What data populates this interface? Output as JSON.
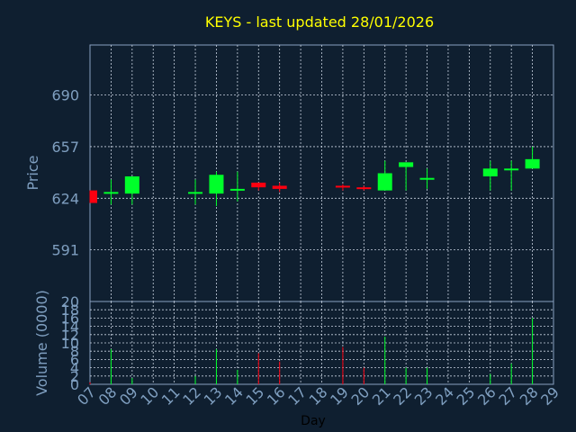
{
  "colors": {
    "background": "#0f1f30",
    "title": "#ffff00",
    "axis_text": "#7f9fc0",
    "up": "#00ff2a",
    "down": "#ff0010",
    "grid": "#c8d2e0"
  },
  "chart_data": [
    {
      "type": "candlestick",
      "title": "KEYS - last updated 28/01/2026",
      "ylabel": "Price",
      "ylim": [
        558,
        722
      ],
      "yticks": [
        591,
        624,
        657,
        690
      ],
      "grid": true,
      "x": [
        "07",
        "08",
        "09",
        "12",
        "13",
        "14",
        "15",
        "16",
        "19",
        "20",
        "21",
        "22",
        "23",
        "26",
        "27",
        "28"
      ],
      "open": [
        629,
        627,
        627,
        627,
        627,
        629,
        634,
        632,
        632,
        631,
        629,
        644,
        637,
        638,
        642,
        643
      ],
      "close": [
        621,
        628,
        638,
        628,
        639,
        630,
        631,
        630,
        631,
        630,
        640,
        647,
        637,
        643,
        643,
        649
      ],
      "high": [
        629,
        636,
        638,
        636,
        641,
        641,
        634,
        634,
        633,
        632,
        648,
        647,
        643,
        648,
        648,
        657
      ],
      "low": [
        621,
        620,
        620,
        620,
        619,
        622,
        629,
        628,
        629,
        629,
        629,
        629,
        630,
        629,
        629,
        643
      ]
    },
    {
      "type": "bar",
      "ylabel": "Volume (0000)",
      "xlabel": "Day",
      "ylim": [
        0,
        20
      ],
      "yticks": [
        0,
        2,
        4,
        6,
        8,
        10,
        12,
        14,
        16,
        18,
        20
      ],
      "x_ticks": [
        "07",
        "08",
        "09",
        "10",
        "11",
        "12",
        "13",
        "14",
        "15",
        "16",
        "17",
        "18",
        "19",
        "20",
        "21",
        "22",
        "23",
        "24",
        "25",
        "26",
        "27",
        "28",
        "29"
      ],
      "x": [
        "07",
        "08",
        "09",
        "12",
        "13",
        "14",
        "15",
        "16",
        "19",
        "20",
        "21",
        "22",
        "23",
        "26",
        "27",
        "28"
      ],
      "values": [
        0.5,
        8.5,
        1.5,
        2,
        8.5,
        3.5,
        7.5,
        5.5,
        9,
        4,
        11.5,
        4,
        4,
        2.5,
        5,
        16
      ],
      "direction": [
        "down",
        "up",
        "up",
        "up",
        "up",
        "up",
        "down",
        "down",
        "down",
        "down",
        "up",
        "up",
        "up",
        "up",
        "up",
        "up"
      ]
    }
  ]
}
